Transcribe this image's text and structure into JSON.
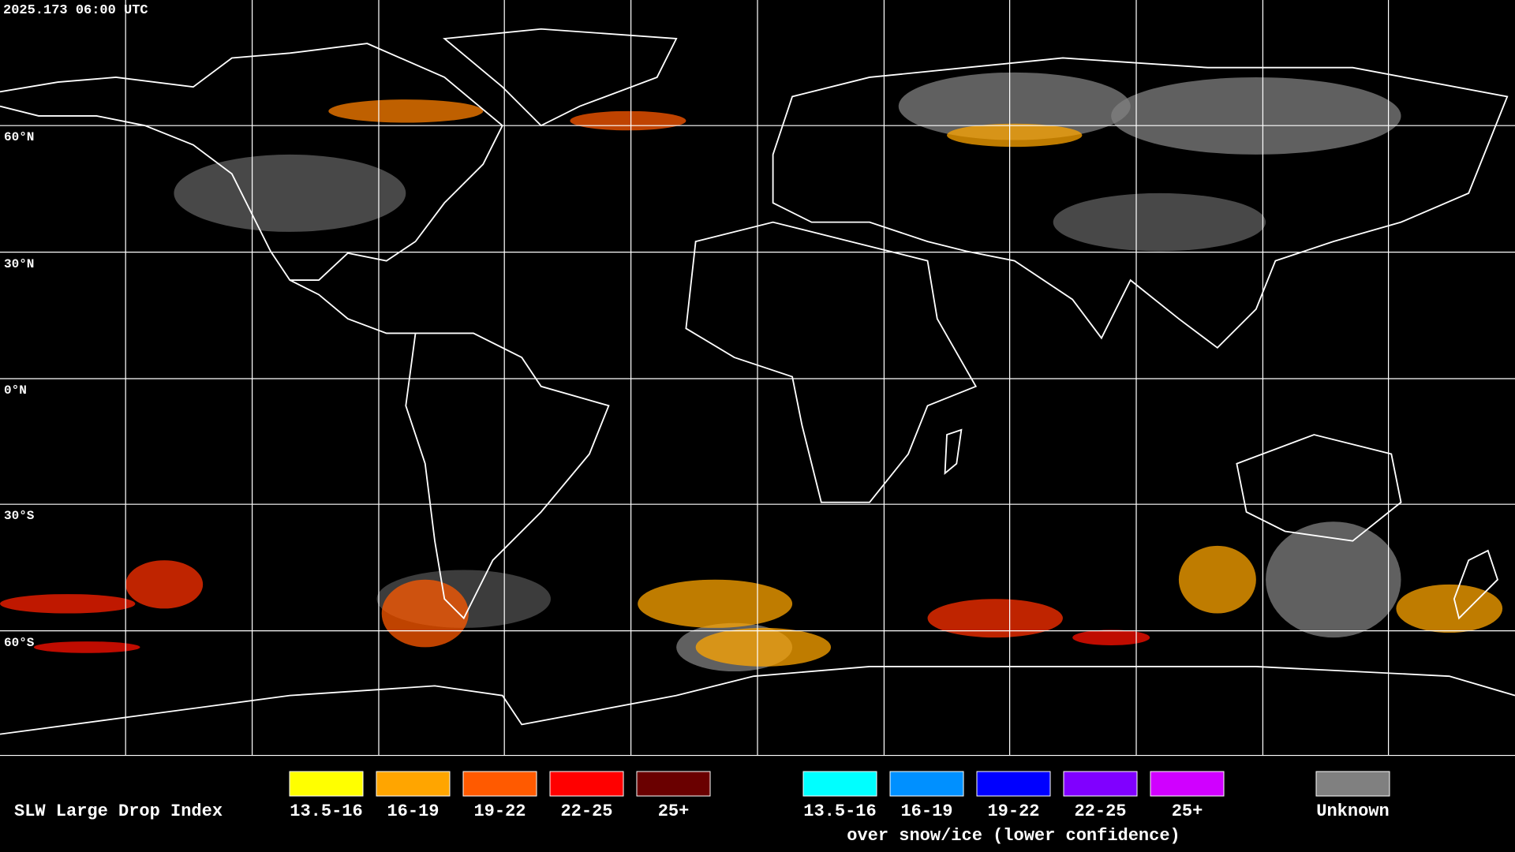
{
  "timestamp": "2025.173 06:00 UTC",
  "latitude_labels": [
    "60°N",
    "30°N",
    "0°N",
    "30°S",
    "60°S"
  ],
  "legend": {
    "title": "SLW Large Drop Index",
    "groups": [
      {
        "items": [
          {
            "label": "13.5-16",
            "color": "#ffff00"
          },
          {
            "label": "16-19",
            "color": "#ffa500"
          },
          {
            "label": "19-22",
            "color": "#ff5a00"
          },
          {
            "label": "22-25",
            "color": "#ff0000"
          },
          {
            "label": "25+",
            "color": "#6a0000"
          }
        ]
      },
      {
        "items": [
          {
            "label": "13.5-16",
            "color": "#00ffff"
          },
          {
            "label": "16-19",
            "color": "#0090ff"
          },
          {
            "label": "19-22",
            "color": "#0000ff"
          },
          {
            "label": "22-25",
            "color": "#8000ff"
          },
          {
            "label": "25+",
            "color": "#d000ff"
          }
        ],
        "caption": "over snow/ice (lower confidence)"
      },
      {
        "items": [
          {
            "label": "Unknown",
            "color": "#808080"
          }
        ]
      }
    ]
  }
}
